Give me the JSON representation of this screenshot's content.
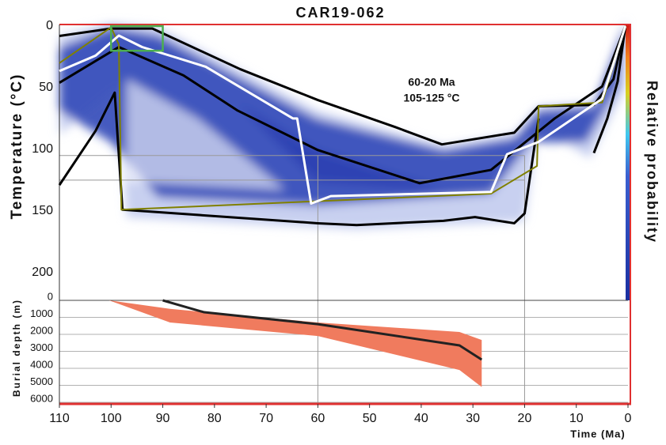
{
  "chart_data": [
    {
      "type": "line",
      "title": "CAR19-062",
      "ylabel": "Temperature (°C)",
      "xlim": [
        110,
        0
      ],
      "ylim": [
        0,
        220
      ],
      "yticks": [
        0,
        50,
        100,
        150,
        200
      ],
      "annotation": [
        "60-20 Ma",
        "105-125 °C"
      ],
      "colorbar_label": "Relative probability",
      "constraint": {
        "x": [
          60,
          20
        ],
        "y": [
          105,
          125
        ],
        "color": "#999999"
      },
      "box": {
        "x": [
          100,
          90
        ],
        "y": [
          0,
          20
        ],
        "color": "#4caf50"
      },
      "series": [
        {
          "color": "#000000",
          "x": [
            110,
            100,
            92,
            75,
            60,
            45,
            36,
            22,
            17.3,
            6.6,
            2.8,
            0.5
          ],
          "values": [
            8,
            2,
            2,
            35,
            60,
            82,
            96,
            86.5,
            65,
            64,
            43,
            0
          ]
        },
        {
          "color": "#000000",
          "x": [
            110,
            103,
            99.3,
            97.8,
            60,
            52.5,
            35.7,
            29.6,
            22,
            20,
            17.3
          ],
          "values": [
            129,
            85,
            54,
            149,
            160,
            161.5,
            158,
            155,
            160,
            152,
            75
          ]
        },
        {
          "color": "#000000",
          "x": [
            6.6,
            4,
            2,
            0.5
          ],
          "values": [
            103,
            75,
            45,
            0
          ]
        },
        {
          "color": "#000000",
          "x": [
            110,
            98.5,
            86,
            75.5,
            60,
            40.3,
            26.5,
            14.2,
            5,
            0.5
          ],
          "values": [
            46,
            17,
            40,
            68.6,
            100.6,
            127.5,
            116.7,
            75,
            49,
            0
          ]
        },
        {
          "color": "#808000",
          "x": [
            110,
            100,
            98.5,
            98,
            26.5,
            17.6,
            17.3,
            5,
            0.5
          ],
          "values": [
            30,
            1,
            15,
            149,
            136,
            113.5,
            65,
            62,
            0
          ]
        },
        {
          "color": "#ffffff",
          "x": [
            110,
            103,
            98.5,
            94,
            81.7,
            64.8,
            64,
            61.3,
            57.5,
            26.5,
            23.4,
            17.3,
            5,
            0.5
          ],
          "values": [
            36.5,
            24,
            7.7,
            17,
            33,
            75,
            75,
            144,
            138,
            134.6,
            104,
            94,
            59,
            0
          ]
        }
      ]
    },
    {
      "type": "line",
      "ylabel": "Burial depth (m)",
      "xlabel": "Time (Ma)",
      "xlim": [
        110,
        0
      ],
      "ylim": [
        0,
        6000
      ],
      "xticks": [
        110,
        100,
        90,
        80,
        70,
        60,
        50,
        40,
        30,
        20,
        10,
        0
      ],
      "yticks": [
        0,
        1000,
        2000,
        3000,
        4000,
        5000,
        6000
      ],
      "grid": true,
      "band": {
        "color": "#f07b5e",
        "x": [
          100.4,
          88.6,
          60,
          32.6,
          28.3
        ],
        "low": [
          0,
          500,
          1300,
          1860,
          2330
        ],
        "high": [
          0,
          1300,
          2100,
          4100,
          5100
        ]
      },
      "series": [
        {
          "color": "#222222",
          "x": [
            90,
            82,
            60,
            32.6,
            28.3
          ],
          "values": [
            0,
            700,
            1400,
            2650,
            3490
          ]
        }
      ]
    }
  ]
}
